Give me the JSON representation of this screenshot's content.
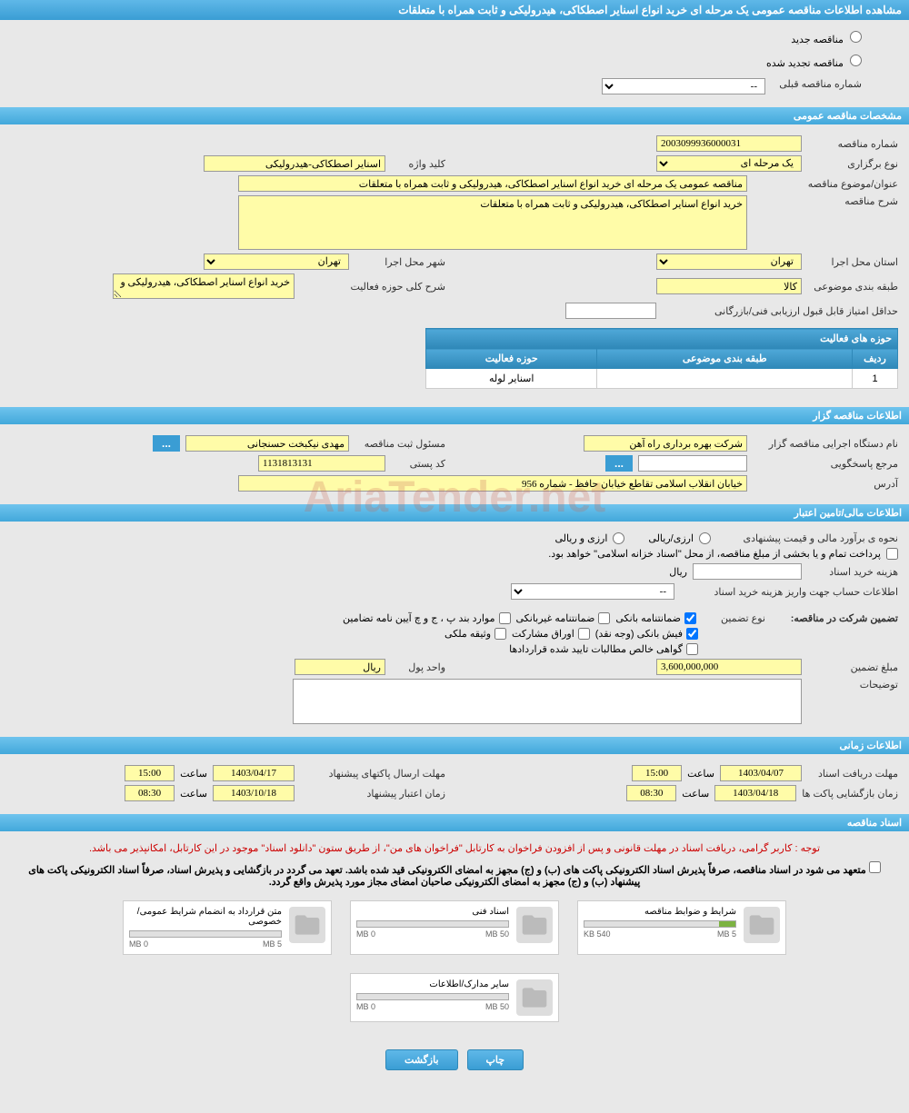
{
  "header": {
    "title": "مشاهده اطلاعات مناقصه عمومی یک مرحله ای خرید انواع اسنایر اصطکاکی، هیدرولیکی و ثابت همراه با متعلقات"
  },
  "radio_options": {
    "new": "مناقصه جدید",
    "renewed": "مناقصه تجدید شده",
    "prev_number_label": "شماره مناقصه قبلی",
    "prev_number_value": "--"
  },
  "sections": {
    "general": "مشخصات مناقصه عمومی",
    "organizer": "اطلاعات مناقصه گزار",
    "financial": "اطلاعات مالی/تامین اعتبار",
    "timing": "اطلاعات زمانی",
    "documents": "اسناد مناقصه"
  },
  "general": {
    "number_label": "شماره مناقصه",
    "number_value": "2003099936000031",
    "type_label": "نوع برگزاری",
    "type_value": "یک مرحله ای",
    "keyword_label": "کلید واژه",
    "keyword_value": "اسنایر اصطکاکی-هیدرولیکی",
    "subject_label": "عنوان/موضوع مناقصه",
    "subject_value": "مناقصه عمومی یک مرحله ای خرید انواع اسنایر اصطکاکی، هیدرولیکی و ثابت همراه با متعلقات",
    "desc_label": "شرح مناقصه",
    "desc_value": "خرید انواع اسنایر اصطکاکی، هیدرولیکی و ثابت همراه با متعلقات",
    "province_label": "استان محل اجرا",
    "province_value": "تهران",
    "city_label": "شهر محل اجرا",
    "city_value": "تهران",
    "category_label": "طبقه بندی موضوعی",
    "category_value": "کالا",
    "activity_desc_label": "شرح کلی حوزه فعالیت",
    "activity_desc_value": "خرید انواع اسنایر اصطکاکی، هیدرولیکی و",
    "min_score_label": "حداقل امتیاز قابل قبول ارزیابی فنی/بازرگانی"
  },
  "activity_table": {
    "title": "حوزه های فعالیت",
    "col_row": "ردیف",
    "col_category": "طبقه بندی موضوعی",
    "col_activity": "حوزه فعالیت",
    "rows": [
      {
        "n": "1",
        "category": "",
        "activity": "اسنایر لوله"
      }
    ]
  },
  "organizer": {
    "name_label": "نام دستگاه اجرایی مناقصه گزار",
    "name_value": "شرکت بهره برداری راه آهن",
    "responsible_label": "مسئول ثبت مناقصه",
    "responsible_value": "مهدی نیکبخت حسنجانی",
    "contact_label": "مرجع پاسخگویی",
    "postal_label": "کد پستی",
    "postal_value": "1131813131",
    "address_label": "آدرس",
    "address_value": "خیابان انقلاب اسلامی تقاطع خیابان حافظ - شماره 956"
  },
  "financial": {
    "estimate_label": "نحوه ی برآورد مالی و قیمت پیشنهادی",
    "currency_type": "ارزی/ریالی",
    "currency_opt": "ارزی و ریالی",
    "treasury_note": "پرداخت تمام و یا بخشی از مبلغ مناقصه، از محل \"اسناد خزانه اسلامی\" خواهد بود.",
    "doc_cost_label": "هزینه خرید اسناد",
    "rial_label": "ریال",
    "account_label": "اطلاعات حساب جهت واریز هزینه خرید اسناد",
    "account_value": "--",
    "guarantee_label": "تضمین شرکت در مناقصه:",
    "guarantee_type_label": "نوع تضمین",
    "g_bank": "ضمانتنامه بانکی",
    "g_nonbank": "ضمانتنامه غیربانکی",
    "g_cases": "موارد بند پ ، ج و چ آیین نامه تضامین",
    "g_cash": "فیش بانکی (وجه نقد)",
    "g_stocks": "اوراق مشارکت",
    "g_property": "وثیقه ملکی",
    "g_cert": "گواهی خالص مطالبات تایید شده قراردادها",
    "amount_label": "مبلغ تضمین",
    "amount_value": "3,600,000,000",
    "unit_label": "واحد پول",
    "unit_value": "ریال",
    "notes_label": "توضیحات"
  },
  "timing": {
    "receive_deadline_label": "مهلت دریافت اسناد",
    "receive_date": "1403/04/07",
    "receive_time": "15:00",
    "submit_deadline_label": "مهلت ارسال پاکتهای پیشنهاد",
    "submit_date": "1403/04/17",
    "submit_time": "15:00",
    "opening_label": "زمان بازگشایی پاکت ها",
    "opening_date": "1403/04/18",
    "opening_time": "08:30",
    "validity_label": "زمان اعتبار پیشنهاد",
    "validity_date": "1403/10/18",
    "validity_time": "08:30",
    "time_label": "ساعت"
  },
  "docs": {
    "red_note": "توجه : کاربر گرامی، دریافت اسناد در مهلت قانونی و پس از افزودن فراخوان به کارتابل \"فراخوان های من\"، از طریق ستون \"دانلود اسناد\" موجود در این کارتابل، امکانپذیر می باشد.",
    "black_note": "متعهد می شود در اسناد مناقصه، صرفاً پذیرش اسناد الکترونیکی پاکت های (ب) و (ج) مجهز به امضای الکترونیکی قید شده باشد. تعهد می گردد در بازگشایی و پذیرش اسناد، صرفاً اسناد الکترونیکی پاکت های پیشنهاد (ب) و (ج) مجهز به امضای الکترونیکی صاحبان امضای مجاز مورد پذیرش واقع گردد.",
    "items": [
      {
        "title": "شرایط و ضوابط مناقصه",
        "used": "540 KB",
        "max": "5 MB",
        "fill_pct": 11
      },
      {
        "title": "اسناد فنی",
        "used": "0 MB",
        "max": "50 MB",
        "fill_pct": 0
      },
      {
        "title": "متن قرارداد به انضمام شرایط عمومی/خصوصی",
        "used": "0 MB",
        "max": "5 MB",
        "fill_pct": 0
      },
      {
        "title": "سایر مدارک/اطلاعات",
        "used": "0 MB",
        "max": "50 MB",
        "fill_pct": 0
      }
    ]
  },
  "footer": {
    "print": "چاپ",
    "back": "بازگشت"
  },
  "colors": {
    "header_bg": "#3a9dd4",
    "yellow_input": "#fffca8",
    "page_bg": "#e8e8e8"
  }
}
